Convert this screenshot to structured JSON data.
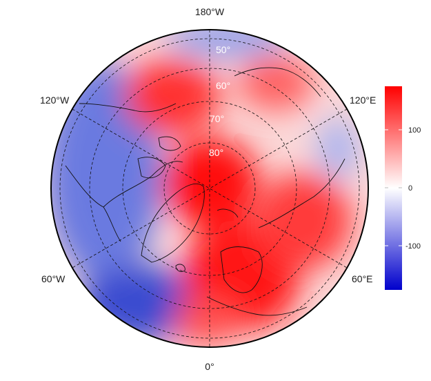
{
  "map": {
    "projection": "north polar stereographic",
    "center": "North Pole",
    "orientation": "0° at bottom, 180°W at top",
    "longitude_labels": [
      "180°W",
      "120°W",
      "120°E",
      "60°W",
      "60°E",
      "0°"
    ],
    "latitude_labels": [
      "50°",
      "60°",
      "70°",
      "80°"
    ],
    "graticule_style": "dashed"
  },
  "colorbar": {
    "min": -175,
    "max": 175,
    "ticks": [
      "100",
      "0",
      "-100"
    ],
    "colors": {
      "low": "#0000cc",
      "mid": "#ffffff",
      "high": "#ff0000"
    }
  },
  "field": {
    "description_colors": {
      "strong_positive": "#ff2020",
      "weak_positive": "#ffc8c8",
      "negative": "#4a5ad8"
    }
  }
}
